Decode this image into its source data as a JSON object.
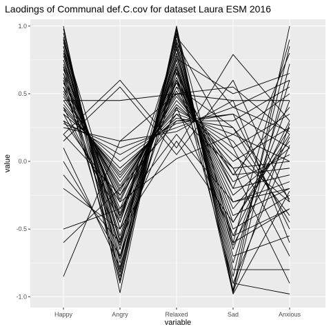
{
  "chart_data": {
    "type": "line",
    "title": "Laodings of Communal def.C.cov for dataset Laura ESM 2016",
    "xlabel": "variable",
    "ylabel": "value",
    "categories": [
      "Happy",
      "Angry",
      "Relaxed",
      "Sad",
      "Anxious"
    ],
    "ylim": [
      -1.08,
      1.05
    ],
    "yticks": [
      -1.0,
      -0.5,
      0.0,
      0.5,
      1.0
    ],
    "ytick_labels": [
      "-1.0",
      "-0.5",
      "0.0",
      "0.5",
      "1.0"
    ],
    "grid": true,
    "legend": "none",
    "panel_background": "#ebebeb",
    "gridline_color": "#ffffff",
    "line_color": "#000000",
    "series": [
      {
        "values": [
          1.0,
          -0.97,
          1.0,
          -0.97,
          0.28
        ]
      },
      {
        "values": [
          0.98,
          -0.85,
          0.97,
          -0.95,
          1.0
        ]
      },
      {
        "values": [
          0.95,
          -0.8,
          0.94,
          -0.9,
          -0.98
        ]
      },
      {
        "values": [
          0.92,
          -0.75,
          0.9,
          -0.85,
          0.85
        ]
      },
      {
        "values": [
          0.9,
          -0.7,
          0.87,
          -0.8,
          -0.8
        ]
      },
      {
        "values": [
          0.88,
          -0.65,
          0.83,
          -0.75,
          0.6
        ]
      },
      {
        "values": [
          0.85,
          -0.6,
          0.8,
          -0.7,
          -0.55
        ]
      },
      {
        "values": [
          0.82,
          -0.58,
          0.78,
          -0.65,
          0.45
        ]
      },
      {
        "values": [
          0.8,
          -0.55,
          0.75,
          -0.6,
          -0.35
        ]
      },
      {
        "values": [
          0.78,
          -0.5,
          0.72,
          -0.55,
          0.3
        ]
      },
      {
        "values": [
          0.75,
          -0.45,
          0.7,
          -0.5,
          -0.25
        ]
      },
      {
        "values": [
          0.72,
          -0.42,
          0.68,
          -0.45,
          0.2
        ]
      },
      {
        "values": [
          0.7,
          -0.4,
          0.65,
          -0.4,
          -0.2
        ]
      },
      {
        "values": [
          0.68,
          -0.38,
          0.62,
          -0.35,
          0.15
        ]
      },
      {
        "values": [
          0.65,
          -0.35,
          0.6,
          -0.3,
          -0.15
        ]
      },
      {
        "values": [
          0.62,
          -0.3,
          0.58,
          -0.25,
          0.1
        ]
      },
      {
        "values": [
          0.6,
          -0.28,
          0.55,
          -0.2,
          -0.1
        ]
      },
      {
        "values": [
          0.58,
          -0.25,
          0.52,
          -0.15,
          0.05
        ]
      },
      {
        "values": [
          0.55,
          -0.22,
          0.5,
          -0.1,
          -0.05
        ]
      },
      {
        "values": [
          0.52,
          -0.2,
          0.48,
          -0.05,
          0.0
        ]
      },
      {
        "values": [
          0.5,
          -0.18,
          0.45,
          0.0,
          0.25
        ]
      },
      {
        "values": [
          0.48,
          -0.15,
          0.42,
          0.05,
          -0.3
        ]
      },
      {
        "values": [
          0.45,
          -0.12,
          0.4,
          0.1,
          0.35
        ]
      },
      {
        "values": [
          0.42,
          -0.1,
          0.38,
          0.15,
          -0.4
        ]
      },
      {
        "values": [
          0.4,
          -0.08,
          0.35,
          0.2,
          0.5
        ]
      },
      {
        "values": [
          0.38,
          -0.05,
          0.32,
          0.25,
          -0.45
        ]
      },
      {
        "values": [
          0.35,
          0.0,
          0.3,
          0.3,
          0.55
        ]
      },
      {
        "values": [
          0.3,
          0.05,
          0.28,
          0.35,
          -0.5
        ]
      },
      {
        "values": [
          0.28,
          0.1,
          0.25,
          0.4,
          0.6
        ]
      },
      {
        "values": [
          0.25,
          0.15,
          0.22,
          0.45,
          -0.6
        ]
      },
      {
        "values": [
          0.45,
          0.45,
          0.5,
          0.45,
          0.45
        ]
      },
      {
        "values": [
          0.2,
          0.6,
          0.1,
          0.79,
          0.3
        ]
      },
      {
        "values": [
          0.15,
          0.55,
          0.05,
          0.6,
          -0.3
        ]
      },
      {
        "values": [
          -0.85,
          0.15,
          0.5,
          0.55,
          0.2
        ]
      },
      {
        "values": [
          -0.6,
          -0.2,
          0.3,
          0.35,
          0.1
        ]
      },
      {
        "values": [
          -0.5,
          -0.35,
          0.2,
          -0.3,
          -0.2
        ]
      },
      {
        "values": [
          -0.2,
          -0.5,
          0.15,
          -0.45,
          0.25
        ]
      },
      {
        "values": [
          -0.1,
          -0.6,
          0.4,
          -0.55,
          -0.35
        ]
      },
      {
        "values": [
          0.0,
          -0.7,
          0.6,
          -0.62,
          0.18
        ]
      },
      {
        "values": [
          0.1,
          -0.78,
          0.7,
          -0.9,
          0.12
        ]
      },
      {
        "values": [
          0.6,
          -0.82,
          0.85,
          -0.98,
          -0.22
        ]
      },
      {
        "values": [
          0.7,
          -0.9,
          0.95,
          -0.96,
          0.72
        ]
      },
      {
        "values": [
          0.9,
          -0.5,
          0.6,
          -0.1,
          0.4
        ]
      },
      {
        "values": [
          0.3,
          -0.3,
          0.02,
          0.2,
          0.0
        ]
      },
      {
        "values": [
          0.55,
          -0.62,
          0.76,
          0.5,
          0.65
        ]
      },
      {
        "values": [
          0.4,
          -0.45,
          0.88,
          0.1,
          -0.7
        ]
      },
      {
        "values": [
          0.65,
          -0.72,
          0.66,
          -0.2,
          0.8
        ]
      },
      {
        "values": [
          0.2,
          -0.25,
          0.35,
          -0.05,
          -0.9
        ]
      },
      {
        "values": [
          0.75,
          -0.65,
          0.92,
          0.4,
          0.22
        ]
      },
      {
        "values": [
          0.35,
          -0.4,
          0.55,
          0.25,
          -0.28
        ]
      },
      {
        "values": [
          0.85,
          -0.88,
          0.98,
          -0.6,
          0.9
        ]
      }
    ]
  }
}
